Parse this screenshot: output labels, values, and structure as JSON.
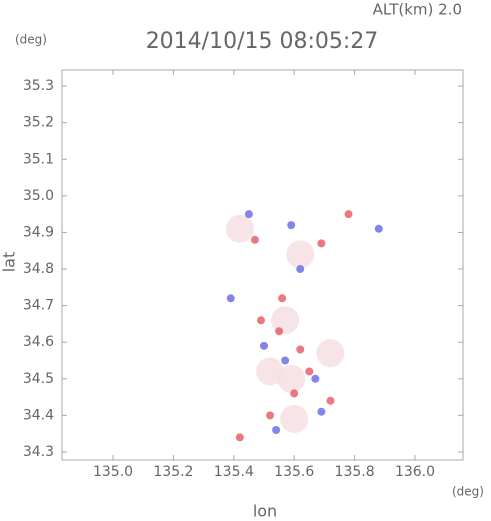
{
  "chart_data": {
    "type": "scatter",
    "title": "2014/10/15 08:05:27",
    "subtitle": "ALT(km)  2.0",
    "x_label": "lon",
    "y_label": "lat",
    "x_unit": "(deg)",
    "y_unit": "(deg)",
    "xlim": [
      134.831,
      136.159
    ],
    "ylim": [
      34.278,
      35.344
    ],
    "xticks": [
      {
        "value": 135,
        "label": "135.0"
      },
      135.2,
      135.4,
      135.6,
      135.8,
      {
        "value": 136,
        "label": "136.0"
      }
    ],
    "yticks": [
      34.3,
      34.4,
      34.5,
      34.6,
      34.7,
      34.8,
      34.9,
      {
        "value": 35,
        "label": "35.0"
      },
      35.1,
      35.2,
      35.3
    ],
    "series": [
      {
        "color": "#f6dfe3",
        "x": [
          135.57,
          135.59,
          135.6,
          135.62,
          135.42,
          135.72,
          135.52
        ],
        "y": [
          34.66,
          34.5,
          34.39,
          34.84,
          34.91,
          34.57,
          34.52
        ]
      },
      {
        "color": "#e8606a",
        "x": [
          135.52,
          135.72,
          135.42,
          135.62,
          135.49,
          135.56,
          135.69,
          135.65,
          135.47,
          135.78,
          135.55,
          135.6
        ],
        "y": [
          34.4,
          34.44,
          34.34,
          34.58,
          34.66,
          34.72,
          34.87,
          34.52,
          34.88,
          34.95,
          34.63,
          34.46
        ]
      },
      {
        "color": "#6f6fe8",
        "x": [
          135.54,
          135.39,
          135.59,
          135.88,
          135.62,
          135.67,
          135.45,
          135.5,
          135.69,
          135.57
        ],
        "y": [
          34.36,
          34.72,
          34.92,
          34.91,
          34.8,
          34.5,
          34.95,
          34.59,
          34.41,
          34.55
        ]
      }
    ]
  }
}
